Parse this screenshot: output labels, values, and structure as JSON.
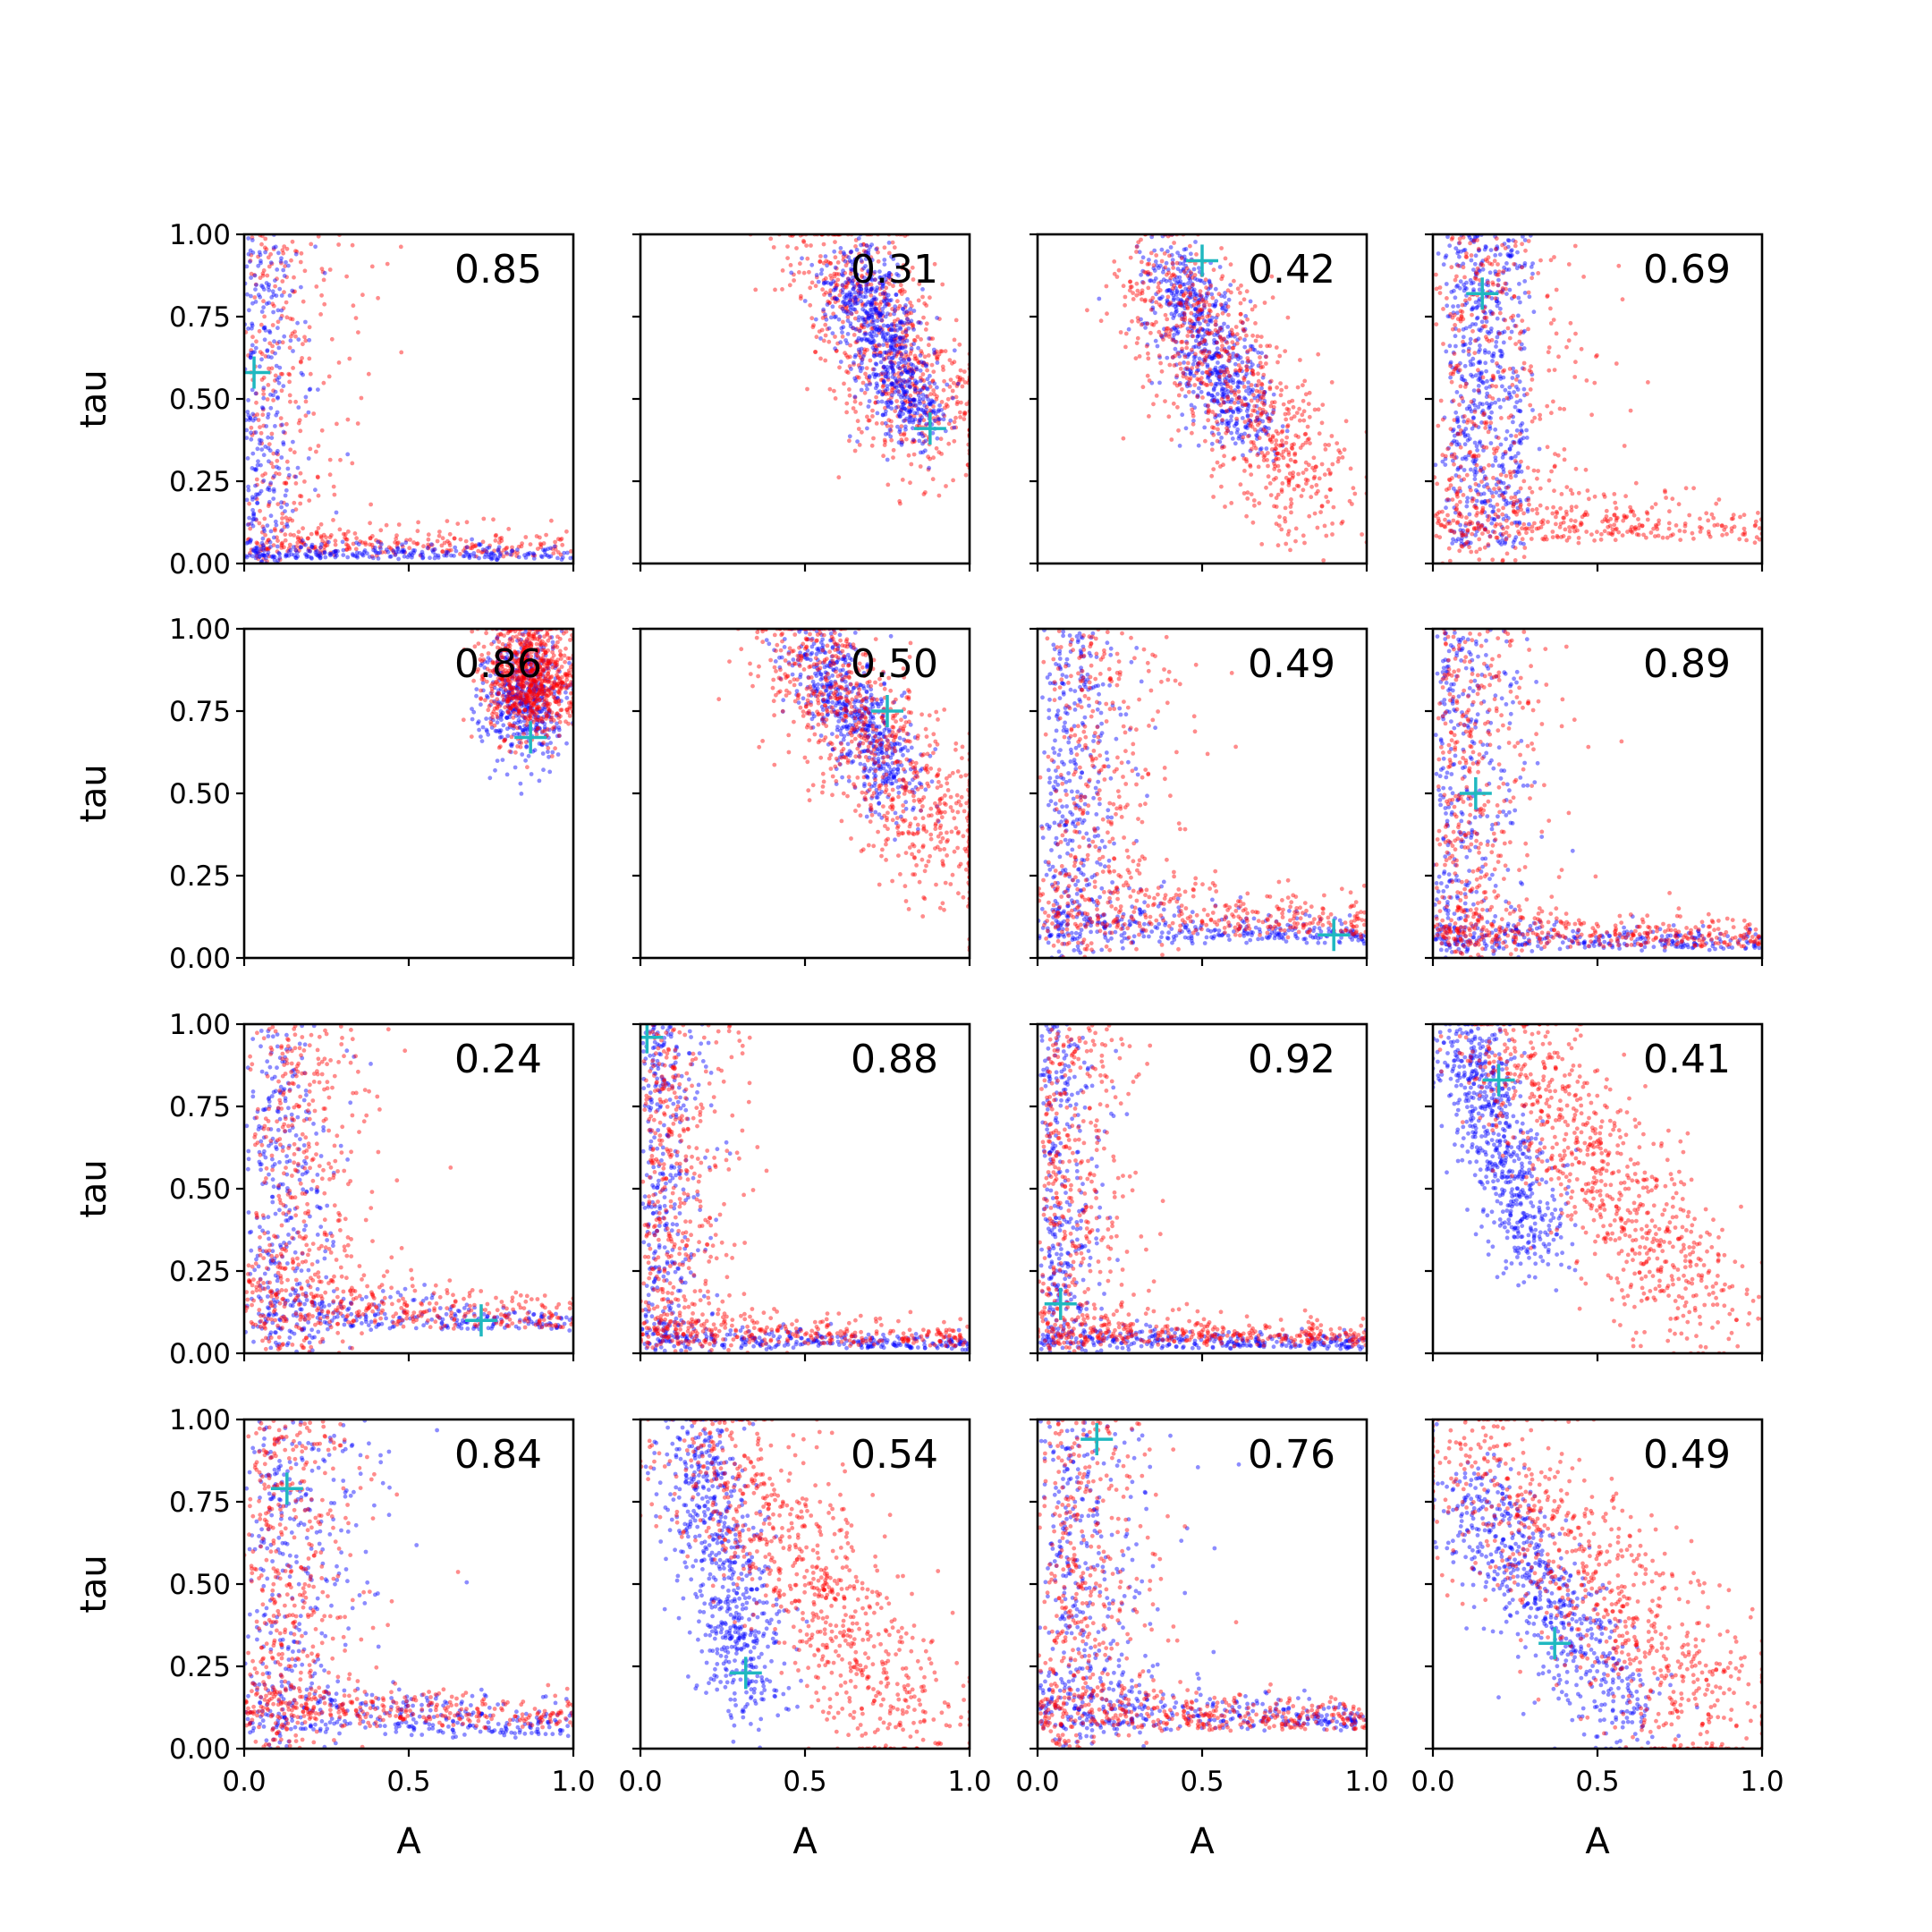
{
  "colors": {
    "red": "#ff0000",
    "blue": "#0000ff",
    "marker": "#20b8c0"
  },
  "chart_data": {
    "type": "scatter",
    "layout": "4x4 grid of scatter subplots",
    "xlabel": "A",
    "ylabel": "tau",
    "xlim": [
      0,
      1
    ],
    "ylim": [
      0,
      1
    ],
    "x_ticks": [
      "0.0",
      "0.5",
      "1.0"
    ],
    "y_ticks": [
      "0.00",
      "0.25",
      "0.50",
      "0.75",
      "1.00"
    ],
    "grid": false,
    "series_colors": [
      "red",
      "blue"
    ],
    "marker_symbol": "+",
    "panels": [
      {
        "annotation": "0.85",
        "marker": [
          0.03,
          0.58
        ],
        "clusters": [
          {
            "color": "red",
            "shape": "L",
            "n": 500,
            "a": 0.05,
            "t0": 0.02,
            "spread": 0.25
          },
          {
            "color": "blue",
            "shape": "L",
            "n": 500,
            "a": 0.02,
            "t0": 0.01,
            "spread": 0.15
          }
        ]
      },
      {
        "annotation": "0.31",
        "marker": [
          0.88,
          0.41
        ],
        "clusters": [
          {
            "color": "red",
            "shape": "line",
            "n": 700,
            "from": [
              0.6,
              0.95
            ],
            "to": [
              0.9,
              0.38
            ],
            "w": 0.1
          },
          {
            "color": "blue",
            "shape": "line",
            "n": 700,
            "from": [
              0.63,
              0.9
            ],
            "to": [
              0.85,
              0.42
            ],
            "w": 0.06
          }
        ]
      },
      {
        "annotation": "0.42",
        "marker": [
          0.5,
          0.92
        ],
        "clusters": [
          {
            "color": "blue",
            "shape": "line",
            "n": 650,
            "from": [
              0.4,
              0.9
            ],
            "to": [
              0.65,
              0.4
            ],
            "w": 0.06
          },
          {
            "color": "red",
            "shape": "line",
            "n": 750,
            "from": [
              0.35,
              0.9
            ],
            "to": [
              0.85,
              0.18
            ],
            "w": 0.1
          }
        ]
      },
      {
        "annotation": "0.69",
        "marker": [
          0.15,
          0.82
        ],
        "clusters": [
          {
            "color": "blue",
            "shape": "band",
            "n": 600,
            "x0": 0.05,
            "x1": 0.28,
            "y0": 0.05,
            "y1": 1.0
          },
          {
            "color": "red",
            "shape": "L",
            "n": 700,
            "a": 0.12,
            "t0": 0.06,
            "spread": 0.35
          }
        ]
      },
      {
        "annotation": "0.86",
        "marker": [
          0.87,
          0.67
        ],
        "clusters": [
          {
            "color": "blue",
            "shape": "blob",
            "n": 500,
            "cx": 0.85,
            "cy": 0.8,
            "sx": 0.06,
            "sy": 0.1
          },
          {
            "color": "red",
            "shape": "blob",
            "n": 800,
            "cx": 0.87,
            "cy": 0.85,
            "sx": 0.07,
            "sy": 0.09
          }
        ]
      },
      {
        "annotation": "0.50",
        "marker": [
          0.75,
          0.75
        ],
        "clusters": [
          {
            "color": "blue",
            "shape": "line",
            "n": 600,
            "from": [
              0.52,
              0.95
            ],
            "to": [
              0.8,
              0.5
            ],
            "w": 0.06
          },
          {
            "color": "red",
            "shape": "line",
            "n": 800,
            "from": [
              0.45,
              0.98
            ],
            "to": [
              0.98,
              0.3
            ],
            "w": 0.1
          }
        ]
      },
      {
        "annotation": "0.49",
        "marker": [
          0.9,
          0.07
        ],
        "clusters": [
          {
            "color": "blue",
            "shape": "L",
            "n": 650,
            "a": 0.12,
            "t0": 0.04,
            "spread": 0.18
          },
          {
            "color": "red",
            "shape": "L",
            "n": 650,
            "a": 0.2,
            "t0": 0.06,
            "spread": 0.3
          }
        ]
      },
      {
        "annotation": "0.89",
        "marker": [
          0.13,
          0.5
        ],
        "clusters": [
          {
            "color": "blue",
            "shape": "L",
            "n": 600,
            "a": 0.06,
            "t0": 0.02,
            "spread": 0.2
          },
          {
            "color": "red",
            "shape": "L",
            "n": 700,
            "a": 0.08,
            "t0": 0.03,
            "spread": 0.25
          }
        ]
      },
      {
        "annotation": "0.24",
        "marker": [
          0.72,
          0.1
        ],
        "clusters": [
          {
            "color": "blue",
            "shape": "L",
            "n": 550,
            "a": 0.15,
            "t0": 0.06,
            "spread": 0.18
          },
          {
            "color": "red",
            "shape": "L",
            "n": 700,
            "a": 0.2,
            "t0": 0.07,
            "spread": 0.25
          }
        ]
      },
      {
        "annotation": "0.88",
        "marker": [
          0.02,
          0.96
        ],
        "clusters": [
          {
            "color": "blue",
            "shape": "L",
            "n": 600,
            "a": 0.05,
            "t0": 0.01,
            "spread": 0.15
          },
          {
            "color": "red",
            "shape": "L",
            "n": 700,
            "a": 0.07,
            "t0": 0.02,
            "spread": 0.22
          }
        ]
      },
      {
        "annotation": "0.92",
        "marker": [
          0.07,
          0.15
        ],
        "clusters": [
          {
            "color": "blue",
            "shape": "L",
            "n": 600,
            "a": 0.05,
            "t0": 0.01,
            "spread": 0.15
          },
          {
            "color": "red",
            "shape": "L",
            "n": 700,
            "a": 0.07,
            "t0": 0.02,
            "spread": 0.22
          }
        ]
      },
      {
        "annotation": "0.41",
        "marker": [
          0.2,
          0.83
        ],
        "clusters": [
          {
            "color": "blue",
            "shape": "line",
            "n": 650,
            "from": [
              0.1,
              0.98
            ],
            "to": [
              0.3,
              0.3
            ],
            "w": 0.06
          },
          {
            "color": "red",
            "shape": "line",
            "n": 800,
            "from": [
              0.18,
              0.98
            ],
            "to": [
              0.85,
              0.1
            ],
            "w": 0.1
          }
        ]
      },
      {
        "annotation": "0.84",
        "marker": [
          0.13,
          0.79
        ],
        "clusters": [
          {
            "color": "blue",
            "shape": "L",
            "n": 600,
            "a": 0.12,
            "t0": 0.03,
            "spread": 0.3
          },
          {
            "color": "red",
            "shape": "L",
            "n": 700,
            "a": 0.12,
            "t0": 0.06,
            "spread": 0.25
          }
        ]
      },
      {
        "annotation": "0.54",
        "marker": [
          0.32,
          0.23
        ],
        "clusters": [
          {
            "color": "blue",
            "shape": "line",
            "n": 650,
            "from": [
              0.15,
              0.98
            ],
            "to": [
              0.35,
              0.15
            ],
            "w": 0.07
          },
          {
            "color": "red",
            "shape": "line",
            "n": 800,
            "from": [
              0.18,
              0.95
            ],
            "to": [
              0.85,
              0.08
            ],
            "w": 0.11
          }
        ]
      },
      {
        "annotation": "0.76",
        "marker": [
          0.18,
          0.94
        ],
        "clusters": [
          {
            "color": "blue",
            "shape": "L",
            "n": 650,
            "a": 0.14,
            "t0": 0.05,
            "spread": 0.25
          },
          {
            "color": "red",
            "shape": "L",
            "n": 700,
            "a": 0.12,
            "t0": 0.05,
            "spread": 0.25
          }
        ]
      },
      {
        "annotation": "0.49",
        "marker": [
          0.37,
          0.32
        ],
        "clusters": [
          {
            "color": "blue",
            "shape": "line",
            "n": 650,
            "from": [
              0.1,
              0.8
            ],
            "to": [
              0.6,
              0.1
            ],
            "w": 0.08
          },
          {
            "color": "red",
            "shape": "line",
            "n": 800,
            "from": [
              0.1,
              0.95
            ],
            "to": [
              0.9,
              0.05
            ],
            "w": 0.12
          }
        ]
      }
    ]
  }
}
